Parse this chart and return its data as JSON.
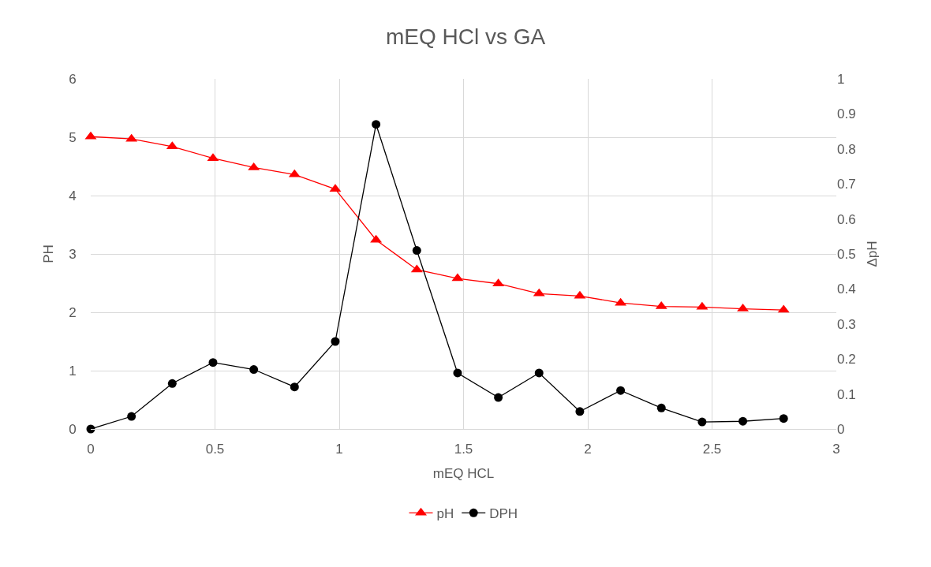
{
  "chart_data": {
    "type": "line",
    "title": "mEQ HCl vs GA",
    "xlabel": "mEQ HCL",
    "ylabel": "PH",
    "y2label": "ΔpH",
    "x": [
      0,
      0.164,
      0.328,
      0.492,
      0.656,
      0.82,
      0.984,
      1.148,
      1.312,
      1.476,
      1.64,
      1.804,
      1.968,
      2.132,
      2.296,
      2.46,
      2.624,
      2.788
    ],
    "series": [
      {
        "name": "pH",
        "color": "#ff0000",
        "marker": "triangle",
        "values": [
          5.01,
          4.97,
          4.84,
          4.64,
          4.48,
          4.36,
          4.11,
          3.24,
          2.73,
          2.58,
          2.49,
          2.32,
          2.28,
          2.16,
          2.1,
          2.09,
          2.06,
          2.04
        ]
      },
      {
        "name": "DPH",
        "color": "#000000",
        "marker": "circle",
        "axis": "y2",
        "values": [
          0,
          0.036,
          0.13,
          0.19,
          0.17,
          0.12,
          0.25,
          0.87,
          0.51,
          0.16,
          0.09,
          0.16,
          0.05,
          0.11,
          0.06,
          0.02,
          0.022,
          0.03
        ]
      }
    ],
    "xlim": [
      0,
      3
    ],
    "xticks": [
      0,
      0.5,
      1,
      1.5,
      2,
      2.5,
      3
    ],
    "ylim": [
      0,
      6
    ],
    "yticks": [
      0,
      1,
      2,
      3,
      4,
      5,
      6
    ],
    "y2lim": [
      0,
      1
    ],
    "y2ticks": [
      0,
      0.1,
      0.2,
      0.3,
      0.4,
      0.5,
      0.6,
      0.7,
      0.8,
      0.9,
      1
    ],
    "grid": true,
    "legend": "bottom"
  }
}
